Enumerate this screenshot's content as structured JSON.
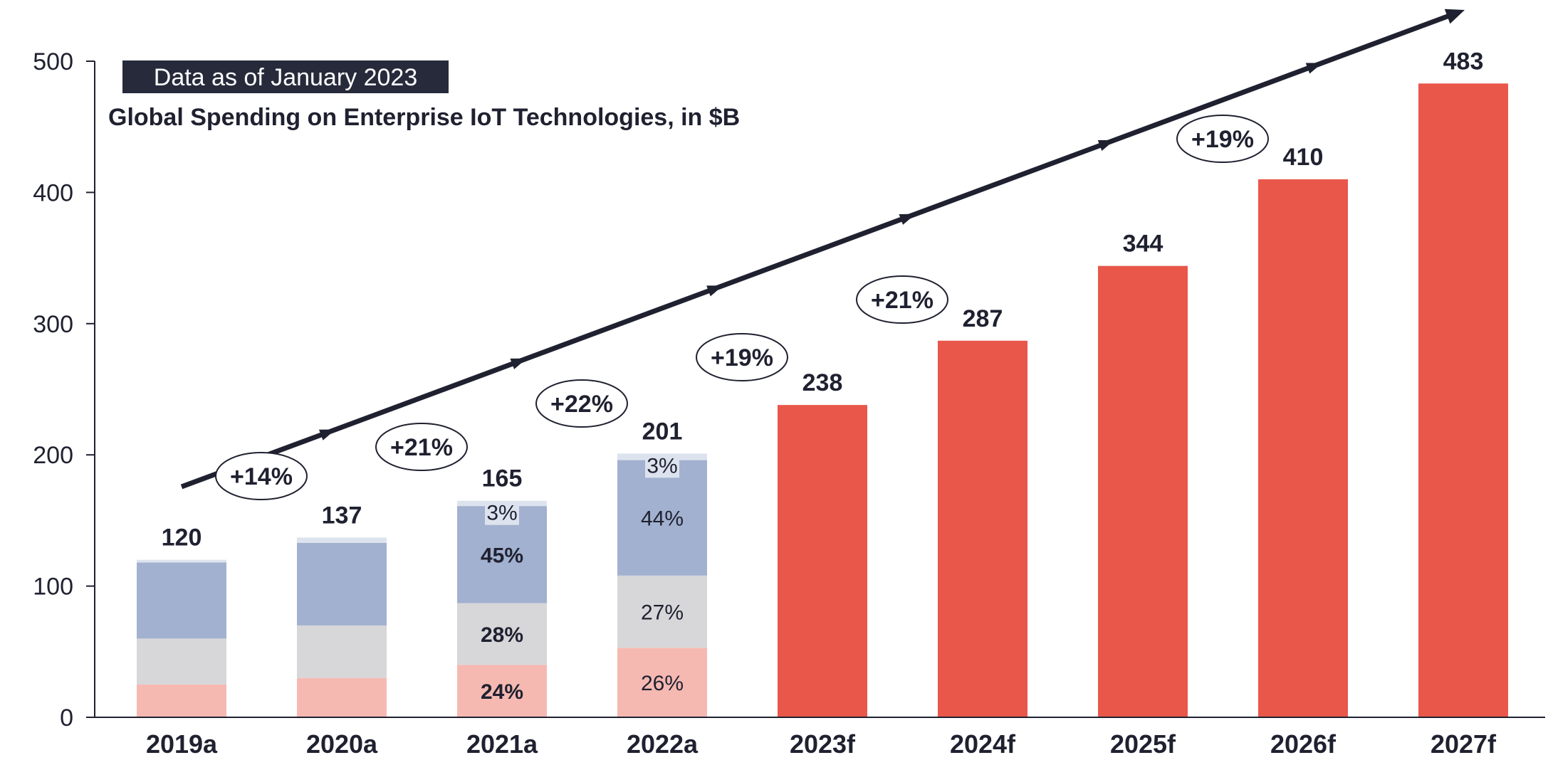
{
  "badge": "Data as of January 2023",
  "title": "Global Spending on Enterprise IoT Technologies, in $B",
  "colors": {
    "forecast": "#e8574a",
    "segment_pink": "#f5b9b2",
    "segment_gray": "#d7d7d9",
    "segment_blue": "#a2b1cf",
    "segment_top": "#dde3ee",
    "arrow": "#1f2130",
    "badge_bg": "#262a3b",
    "text": "#1f2130"
  },
  "chart_data": {
    "type": "bar",
    "ylim": [
      0,
      500
    ],
    "yticks": [
      "0",
      "100",
      "200",
      "300",
      "400",
      "500"
    ],
    "grid": false,
    "categories": [
      "2019a",
      "2020a",
      "2021a",
      "2022a",
      "2023f",
      "2024f",
      "2025f",
      "2026f",
      "2027f"
    ],
    "totals": [
      120,
      137,
      165,
      201,
      238,
      287,
      344,
      410,
      483
    ],
    "total_labels": [
      "120",
      "137",
      "165",
      "201",
      "238",
      "287",
      "344",
      "410",
      "483"
    ],
    "stacked_segments": [
      {
        "category": "2019a",
        "values": [
          25,
          35,
          58,
          2
        ],
        "labels": [
          "",
          "",
          "",
          ""
        ]
      },
      {
        "category": "2020a",
        "values": [
          30,
          40,
          63,
          4
        ],
        "labels": [
          "",
          "",
          "",
          ""
        ]
      },
      {
        "category": "2021a",
        "values": [
          40,
          47,
          74,
          4
        ],
        "labels": [
          "24%",
          "28%",
          "45%",
          "3%"
        ]
      },
      {
        "category": "2022a",
        "values": [
          53,
          55,
          88,
          5
        ],
        "labels": [
          "26%",
          "27%",
          "44%",
          "3%"
        ]
      }
    ],
    "growth_rates": [
      "+14%",
      "+21%",
      "+22%",
      "+19%",
      "+21%",
      "+19%"
    ]
  }
}
